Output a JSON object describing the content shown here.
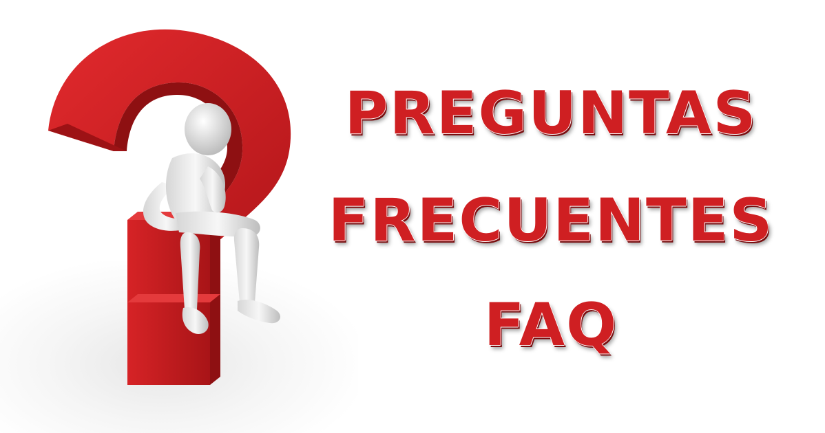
{
  "title": {
    "line1": "PREGUNTAS",
    "line2": "FRECUENTES",
    "line3": "FAQ"
  },
  "colors": {
    "text_red": "#cf1f22",
    "mark_red": "#c81c1f",
    "mark_dark_red": "#8e1012",
    "figure_white": "#f2f2f2",
    "figure_shade": "#bdbdbd"
  },
  "illustration": {
    "icon": "question-mark-with-thinking-figure-icon"
  }
}
